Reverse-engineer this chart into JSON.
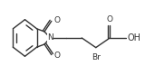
{
  "bg_color": "#ffffff",
  "line_color": "#333333",
  "text_color": "#333333",
  "figsize": [
    1.6,
    0.83
  ],
  "dpi": 100,
  "xlim": [
    0,
    160
  ],
  "ylim": [
    0,
    83
  ]
}
